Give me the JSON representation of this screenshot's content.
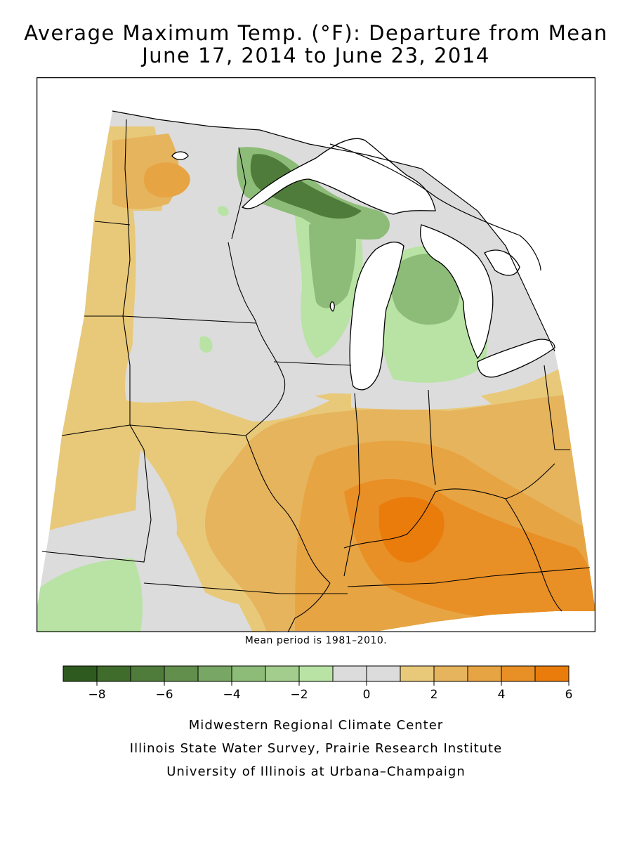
{
  "title": {
    "line1": "Average Maximum Temp. (°F): Departure from Mean",
    "line2": "June 17, 2014 to June 23, 2014"
  },
  "mean_note": "Mean period is 1981–2010.",
  "legend": {
    "bins": [
      {
        "from": -9,
        "to": -8,
        "color": "#2f5a1f"
      },
      {
        "from": -8,
        "to": -7,
        "color": "#3f6b2b"
      },
      {
        "from": -7,
        "to": -6,
        "color": "#4f7c3a"
      },
      {
        "from": -6,
        "to": -5,
        "color": "#628f4c"
      },
      {
        "from": -5,
        "to": -4,
        "color": "#78a664"
      },
      {
        "from": -4,
        "to": -3,
        "color": "#8dbc78"
      },
      {
        "from": -3,
        "to": -2,
        "color": "#a2cd8c"
      },
      {
        "from": -2,
        "to": -1,
        "color": "#b8e3a4"
      },
      {
        "from": -1,
        "to": 0,
        "color": "#dcdcdc"
      },
      {
        "from": 0,
        "to": 1,
        "color": "#dcdcdc"
      },
      {
        "from": 1,
        "to": 2,
        "color": "#e8c97a"
      },
      {
        "from": 2,
        "to": 3,
        "color": "#e6b45c"
      },
      {
        "from": 3,
        "to": 4,
        "color": "#e7a443"
      },
      {
        "from": 4,
        "to": 5,
        "color": "#e88f25"
      },
      {
        "from": 5,
        "to": 6,
        "color": "#e97c0b"
      }
    ],
    "tick_labels": [
      "−8",
      "−6",
      "−4",
      "−2",
      "0",
      "2",
      "4",
      "6"
    ],
    "tick_values": [
      -8,
      -6,
      -4,
      -2,
      0,
      2,
      4,
      6
    ]
  },
  "credits": {
    "line1": "Midwestern Regional Climate Center",
    "line2": "Illinois State Water Survey, Prairie Research Institute",
    "line3": "University of Illinois at Urbana–Champaign"
  },
  "colors": {
    "background": "#dcdcdc",
    "water": "#ffffff",
    "border": "#000000"
  }
}
